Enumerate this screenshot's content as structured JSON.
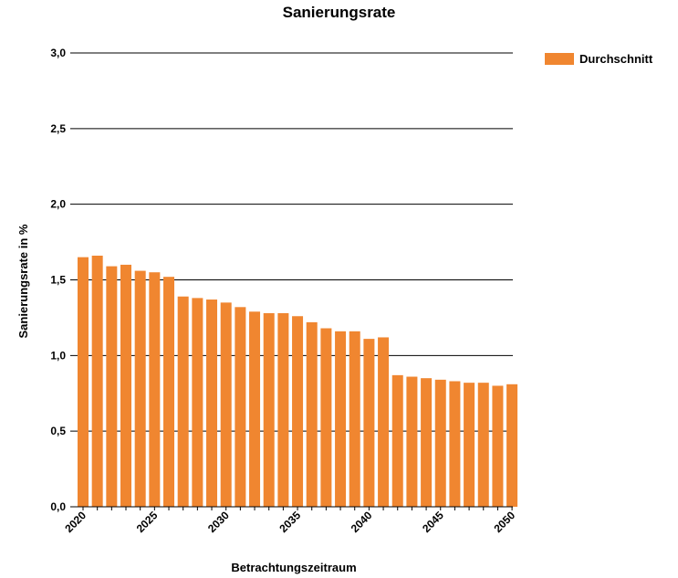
{
  "chart_data": {
    "type": "bar",
    "title": "Sanierungsrate",
    "xlabel": "Betrachtungszeitraum",
    "ylabel": "Sanierungsrate in %",
    "ylim": [
      0,
      3.0
    ],
    "yticks": [
      "0,0",
      "0,5",
      "1,0",
      "1,5",
      "2,0",
      "2,5",
      "3,0"
    ],
    "yticks_values": [
      0,
      0.5,
      1.0,
      1.5,
      2.0,
      2.5,
      3.0
    ],
    "xticks": [
      "2020",
      "2025",
      "2030",
      "2035",
      "2040",
      "2045",
      "2050"
    ],
    "xticks_values": [
      2020,
      2025,
      2030,
      2035,
      2040,
      2045,
      2050
    ],
    "grid": "horizontal",
    "legend_position": "top-right",
    "series": [
      {
        "name": "Durchschnitt",
        "color": "#f08630",
        "x": [
          2020,
          2021,
          2022,
          2023,
          2024,
          2025,
          2026,
          2027,
          2028,
          2029,
          2030,
          2031,
          2032,
          2033,
          2034,
          2035,
          2036,
          2037,
          2038,
          2039,
          2040,
          2041,
          2042,
          2043,
          2044,
          2045,
          2046,
          2047,
          2048,
          2049,
          2050
        ],
        "values": [
          1.65,
          1.66,
          1.59,
          1.6,
          1.56,
          1.55,
          1.52,
          1.39,
          1.38,
          1.37,
          1.35,
          1.32,
          1.29,
          1.28,
          1.28,
          1.26,
          1.22,
          1.18,
          1.16,
          1.16,
          1.11,
          1.12,
          0.87,
          0.86,
          0.85,
          0.84,
          0.83,
          0.82,
          0.82,
          0.8,
          0.81
        ]
      }
    ]
  }
}
